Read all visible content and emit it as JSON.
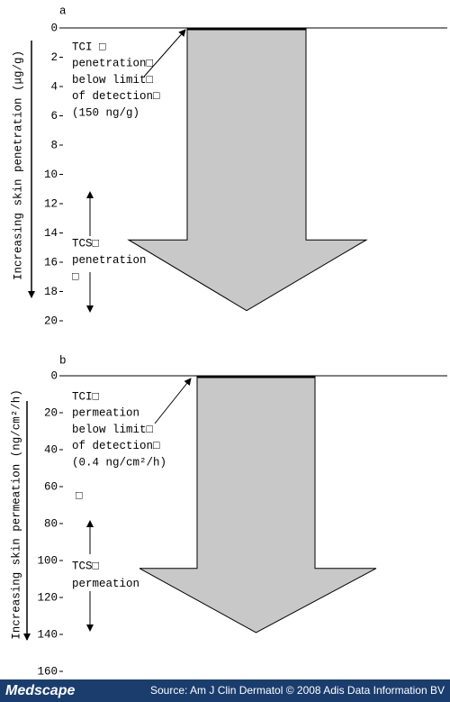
{
  "chart_data": [
    {
      "type": "arrow",
      "panel_label": "a",
      "ylabel": "Increasing skin penetration (μg/g)",
      "categories": [
        "TCI",
        "TCS"
      ],
      "values": [
        0,
        19.3
      ],
      "ylim": [
        0,
        20
      ],
      "yticks": [
        0,
        2,
        4,
        6,
        8,
        10,
        12,
        14,
        16,
        18,
        20
      ],
      "annotations": [
        [
          "TCI □",
          "penetration□",
          "below limit□",
          "of detection□",
          "(150 ng/g)"
        ],
        [
          "TCS□",
          "penetration",
          "□"
        ]
      ]
    },
    {
      "type": "arrow",
      "panel_label": "b",
      "ylabel": "Increasing skin permeation (ng/cm²/h)",
      "categories": [
        "TCI",
        "TCS"
      ],
      "values": [
        0,
        139
      ],
      "ylim": [
        0,
        160
      ],
      "yticks": [
        0,
        20,
        40,
        60,
        80,
        100,
        120,
        140,
        160
      ],
      "annotations": [
        [
          "TCI□",
          "permeation",
          "below limit□",
          "of detection□",
          "(0.4 ng/cm²/h)"
        ],
        [
          "□"
        ],
        [
          "TCS□",
          "permeation"
        ]
      ]
    }
  ],
  "footer": {
    "brand": "Medscape",
    "source": "Source: Am J Clin Dermatol © 2008 Adis Data Information BV"
  }
}
